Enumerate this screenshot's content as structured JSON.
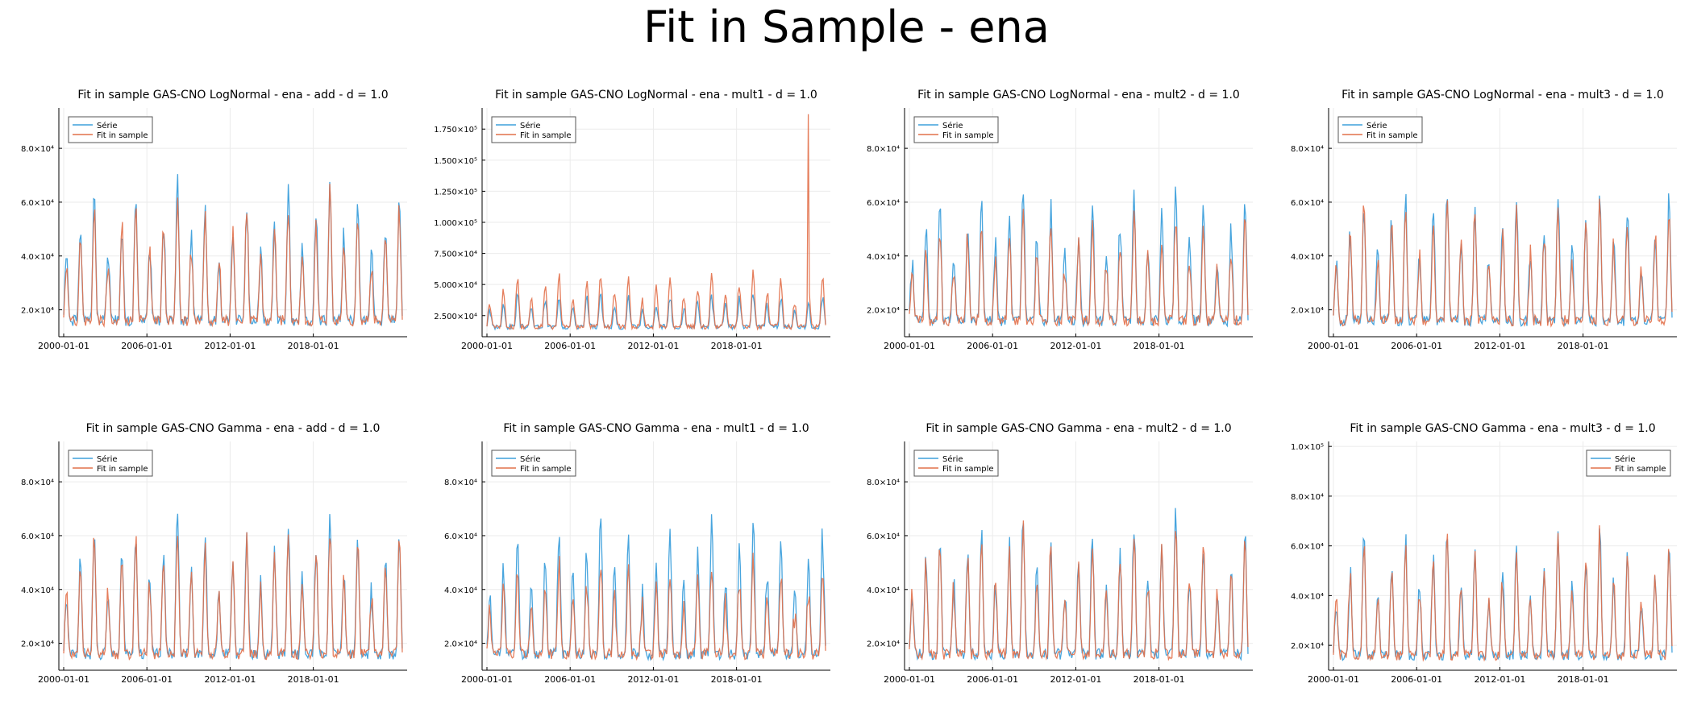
{
  "figure": {
    "title": "Fit in Sample - ena"
  },
  "colors": {
    "serie": "#3ea0dc",
    "fit": "#e2704a",
    "axis": "#000000",
    "grid": "#ebebeb"
  },
  "chart_data": [
    {
      "type": "line",
      "title": "Fit in sample GAS-CNO LogNormal - ena - add - d = 1.0",
      "x_ticks": [
        "2000-01-01",
        "2006-01-01",
        "2012-01-01",
        "2018-01-01"
      ],
      "yticks": [
        {
          "value": 20000,
          "label": "2.0×10⁴"
        },
        {
          "value": 40000,
          "label": "4.0×10⁴"
        },
        {
          "value": 60000,
          "label": "6.0×10⁴"
        },
        {
          "value": 80000,
          "label": "8.0×10⁴"
        }
      ],
      "ylim": [
        10000,
        95000
      ],
      "legend_position": "top-left",
      "series": [
        {
          "name": "Série",
          "x_range": [
            "2000-01-01",
            "2024-06-01"
          ],
          "seed": 1,
          "peak_scale": 1.0,
          "spike": null
        },
        {
          "name": "Fit in sample",
          "x_range": [
            "2000-01-01",
            "2024-06-01"
          ],
          "seed": 2,
          "peak_scale": 0.93,
          "spike": null
        }
      ]
    },
    {
      "type": "line",
      "title": "Fit in sample GAS-CNO LogNormal - ena - mult1 - d = 1.0",
      "x_ticks": [
        "2000-01-01",
        "2006-01-01",
        "2012-01-01",
        "2018-01-01"
      ],
      "yticks": [
        {
          "value": 25000,
          "label": "2.500×10⁴"
        },
        {
          "value": 50000,
          "label": "5.000×10⁴"
        },
        {
          "value": 75000,
          "label": "7.500×10⁴"
        },
        {
          "value": 100000,
          "label": "1.000×10⁵"
        },
        {
          "value": 125000,
          "label": "1.250×10⁵"
        },
        {
          "value": 150000,
          "label": "1.500×10⁵"
        },
        {
          "value": 175000,
          "label": "1.750×10⁵"
        }
      ],
      "ylim": [
        8000,
        192000
      ],
      "legend_position": "top-left",
      "series": [
        {
          "name": "Série",
          "x_range": [
            "2000-01-01",
            "2024-06-01"
          ],
          "seed": 3,
          "peak_scale": 0.55,
          "spike": null
        },
        {
          "name": "Fit in sample",
          "x_range": [
            "2000-01-01",
            "2024-06-01"
          ],
          "seed": 4,
          "peak_scale": 0.9,
          "spike": {
            "date": "2023-03-01",
            "value": 187000
          }
        }
      ]
    },
    {
      "type": "line",
      "title": "Fit in sample GAS-CNO LogNormal - ena - mult2 - d = 1.0",
      "x_ticks": [
        "2000-01-01",
        "2006-01-01",
        "2012-01-01",
        "2018-01-01"
      ],
      "yticks": [
        {
          "value": 20000,
          "label": "2.0×10⁴"
        },
        {
          "value": 40000,
          "label": "4.0×10⁴"
        },
        {
          "value": 60000,
          "label": "6.0×10⁴"
        },
        {
          "value": 80000,
          "label": "8.0×10⁴"
        }
      ],
      "ylim": [
        10000,
        95000
      ],
      "legend_position": "top-left",
      "series": [
        {
          "name": "Série",
          "x_range": [
            "2000-01-01",
            "2024-06-01"
          ],
          "seed": 5,
          "peak_scale": 1.0,
          "spike": null
        },
        {
          "name": "Fit in sample",
          "x_range": [
            "2000-01-01",
            "2024-06-01"
          ],
          "seed": 6,
          "peak_scale": 0.82,
          "spike": null
        }
      ]
    },
    {
      "type": "line",
      "title": "Fit in sample GAS-CNO LogNormal - ena - mult3 - d = 1.0",
      "x_ticks": [
        "2000-01-01",
        "2006-01-01",
        "2012-01-01",
        "2018-01-01"
      ],
      "yticks": [
        {
          "value": 20000,
          "label": "2.0×10⁴"
        },
        {
          "value": 40000,
          "label": "4.0×10⁴"
        },
        {
          "value": 60000,
          "label": "6.0×10⁴"
        },
        {
          "value": 80000,
          "label": "8.0×10⁴"
        }
      ],
      "ylim": [
        10000,
        95000
      ],
      "legend_position": "top-left",
      "series": [
        {
          "name": "Série",
          "x_range": [
            "2000-01-01",
            "2024-06-01"
          ],
          "seed": 7,
          "peak_scale": 1.0,
          "spike": null
        },
        {
          "name": "Fit in sample",
          "x_range": [
            "2000-01-01",
            "2024-06-01"
          ],
          "seed": 8,
          "peak_scale": 0.92,
          "spike": null
        }
      ]
    },
    {
      "type": "line",
      "title": "Fit in sample GAS-CNO Gamma - ena - add - d = 1.0",
      "x_ticks": [
        "2000-01-01",
        "2006-01-01",
        "2012-01-01",
        "2018-01-01"
      ],
      "yticks": [
        {
          "value": 20000,
          "label": "2.0×10⁴"
        },
        {
          "value": 40000,
          "label": "4.0×10⁴"
        },
        {
          "value": 60000,
          "label": "6.0×10⁴"
        },
        {
          "value": 80000,
          "label": "8.0×10⁴"
        }
      ],
      "ylim": [
        10000,
        95000
      ],
      "legend_position": "top-left",
      "series": [
        {
          "name": "Série",
          "x_range": [
            "2000-01-01",
            "2024-06-01"
          ],
          "seed": 9,
          "peak_scale": 1.0,
          "spike": null
        },
        {
          "name": "Fit in sample",
          "x_range": [
            "2000-01-01",
            "2024-06-01"
          ],
          "seed": 10,
          "peak_scale": 0.94,
          "spike": null
        }
      ]
    },
    {
      "type": "line",
      "title": "Fit in sample GAS-CNO Gamma - ena - mult1 - d = 1.0",
      "x_ticks": [
        "2000-01-01",
        "2006-01-01",
        "2012-01-01",
        "2018-01-01"
      ],
      "yticks": [
        {
          "value": 20000,
          "label": "2.0×10⁴"
        },
        {
          "value": 40000,
          "label": "4.0×10⁴"
        },
        {
          "value": 60000,
          "label": "6.0×10⁴"
        },
        {
          "value": 80000,
          "label": "8.0×10⁴"
        }
      ],
      "ylim": [
        10000,
        95000
      ],
      "legend_position": "top-left",
      "series": [
        {
          "name": "Série",
          "x_range": [
            "2000-01-01",
            "2024-06-01"
          ],
          "seed": 11,
          "peak_scale": 1.0,
          "spike": null
        },
        {
          "name": "Fit in sample",
          "x_range": [
            "2000-01-01",
            "2024-06-01"
          ],
          "seed": 12,
          "peak_scale": 0.72,
          "spike": null
        }
      ]
    },
    {
      "type": "line",
      "title": "Fit in sample GAS-CNO Gamma - ena - mult2 - d = 1.0",
      "x_ticks": [
        "2000-01-01",
        "2006-01-01",
        "2012-01-01",
        "2018-01-01"
      ],
      "yticks": [
        {
          "value": 20000,
          "label": "2.0×10⁴"
        },
        {
          "value": 40000,
          "label": "4.0×10⁴"
        },
        {
          "value": 60000,
          "label": "6.0×10⁴"
        },
        {
          "value": 80000,
          "label": "8.0×10⁴"
        }
      ],
      "ylim": [
        10000,
        95000
      ],
      "legend_position": "top-left",
      "series": [
        {
          "name": "Série",
          "x_range": [
            "2000-01-01",
            "2024-06-01"
          ],
          "seed": 13,
          "peak_scale": 1.0,
          "spike": null
        },
        {
          "name": "Fit in sample",
          "x_range": [
            "2000-01-01",
            "2024-06-01"
          ],
          "seed": 14,
          "peak_scale": 0.95,
          "spike": null
        }
      ]
    },
    {
      "type": "line",
      "title": "Fit in sample GAS-CNO Gamma - ena - mult3 - d = 1.0",
      "x_ticks": [
        "2000-01-01",
        "2006-01-01",
        "2012-01-01",
        "2018-01-01"
      ],
      "yticks": [
        {
          "value": 20000,
          "label": "2.0×10⁴"
        },
        {
          "value": 40000,
          "label": "4.0×10⁴"
        },
        {
          "value": 60000,
          "label": "6.0×10⁴"
        },
        {
          "value": 80000,
          "label": "8.0×10⁴"
        },
        {
          "value": 100000,
          "label": "1.0×10⁵"
        }
      ],
      "ylim": [
        10000,
        102000
      ],
      "legend_position": "top-right",
      "series": [
        {
          "name": "Série",
          "x_range": [
            "2000-01-01",
            "2024-06-01"
          ],
          "seed": 15,
          "peak_scale": 1.0,
          "spike": null
        },
        {
          "name": "Fit in sample",
          "x_range": [
            "2000-01-01",
            "2024-06-01"
          ],
          "seed": 16,
          "peak_scale": 0.97,
          "spike": null
        }
      ]
    }
  ]
}
